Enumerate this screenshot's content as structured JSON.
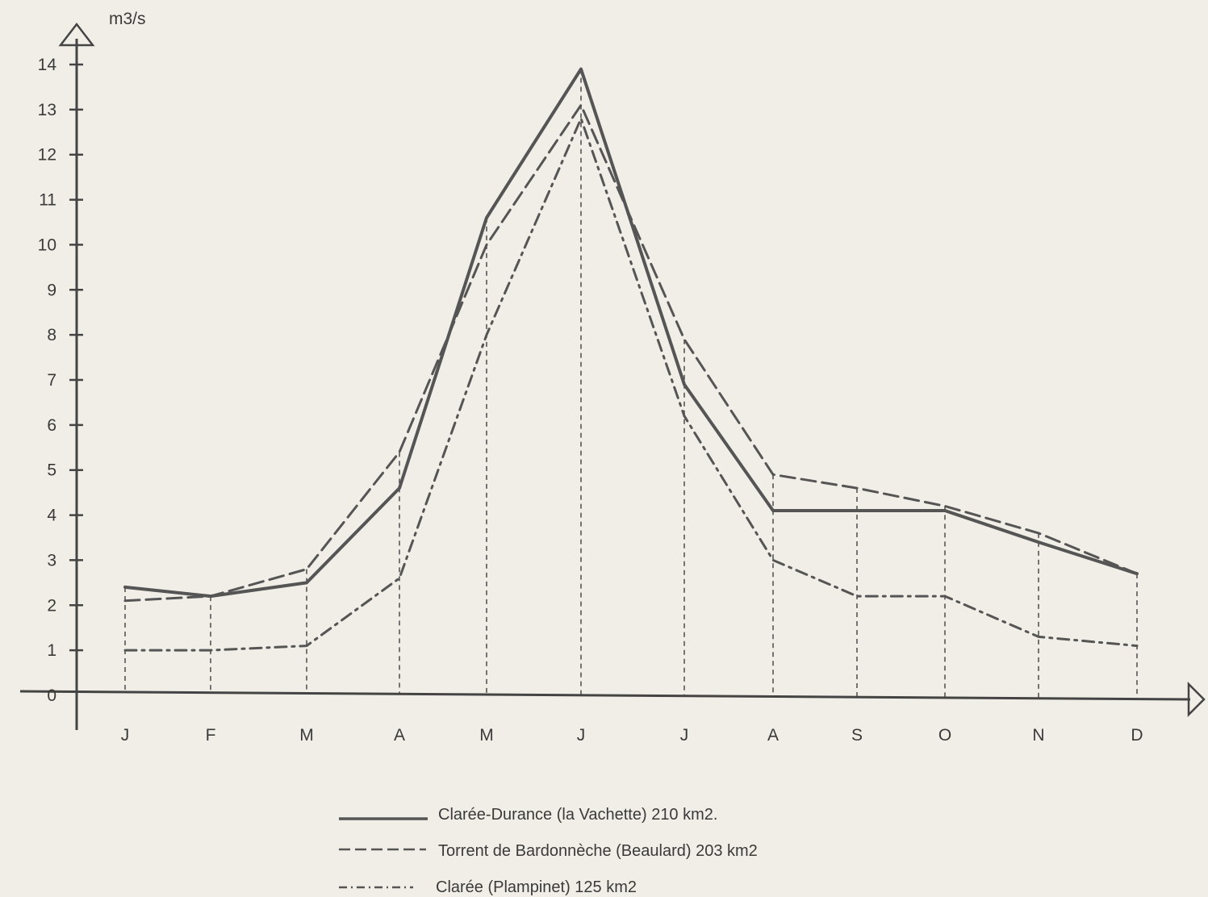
{
  "chart_data": {
    "type": "line",
    "title": "",
    "xlabel": "",
    "ylabel": "m3/s",
    "categories": [
      "J",
      "F",
      "M",
      "A",
      "M",
      "J",
      "J",
      "A",
      "S",
      "O",
      "N",
      "D"
    ],
    "y_ticks": [
      "0",
      "1",
      "2",
      "3",
      "4",
      "5",
      "6",
      "7",
      "8",
      "9",
      "10",
      "11",
      "12",
      "13",
      "14"
    ],
    "ylim": [
      0,
      14
    ],
    "grid": false,
    "month_drop_lines": true,
    "legend_position": "bottom-center",
    "series": [
      {
        "name": "Clarée-Durance (la Vachette) 210 km2.",
        "style": "solid",
        "color": "#555555",
        "values": [
          2.4,
          2.2,
          2.5,
          4.6,
          10.6,
          13.9,
          6.9,
          4.1,
          4.1,
          4.1,
          3.4,
          2.7
        ]
      },
      {
        "name": "Torrent de Bardonnèche (Beaulard) 203 km2",
        "style": "dashed",
        "color": "#555555",
        "values": [
          2.1,
          2.2,
          2.8,
          5.4,
          10.0,
          13.1,
          7.9,
          4.9,
          4.6,
          4.2,
          3.6,
          2.7
        ]
      },
      {
        "name": "Clarée (Plampinet) 125 km2",
        "style": "dash-dot",
        "color": "#555555",
        "values": [
          1.0,
          1.0,
          1.1,
          2.6,
          8.0,
          12.8,
          6.2,
          3.0,
          2.2,
          2.2,
          1.3,
          1.1
        ]
      }
    ]
  }
}
